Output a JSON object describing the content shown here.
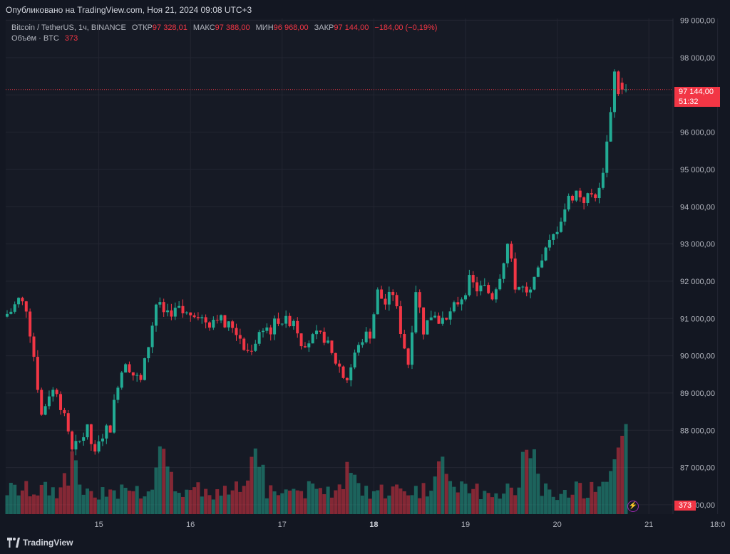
{
  "header": {
    "published": "Опубликовано на TradingView.com, Ноя 21, 2024 09:08 UTC+3"
  },
  "legend": {
    "symbol": "Bitcoin / TetherUS, 1ч, BINANCE",
    "open_label": "ОТКР",
    "open_value": "97 328,01",
    "high_label": "МАКС",
    "high_value": "97 388,00",
    "low_label": "МИН",
    "low_value": "96 968,00",
    "close_label": "ЗАКР",
    "close_value": "97 144,00",
    "change": "−184,00 (−0,19%)",
    "volume_label": "Объём · BTC",
    "volume_value": "373"
  },
  "price_tag": {
    "price": "97 144,00",
    "countdown": "51:32"
  },
  "volume_tag": "373",
  "footer": {
    "brand": "TradingView"
  },
  "colors": {
    "up": "#22ab94",
    "down": "#f23645",
    "bg": "#161a25",
    "grid": "#232632",
    "text": "#b2b5be"
  },
  "icons": {
    "flash": "lightning-icon"
  },
  "chart_data": {
    "type": "candlestick",
    "y_axis": {
      "min": 85750,
      "max": 99050,
      "ticks": [
        86000,
        87000,
        88000,
        89000,
        90000,
        91000,
        92000,
        93000,
        94000,
        95000,
        96000,
        97000,
        98000,
        99000
      ],
      "tick_labels": [
        "86 000,00",
        "87 000,00",
        "88 000,00",
        "89 000,00",
        "90 000,00",
        "91 000,00",
        "92 000,00",
        "93 000,00",
        "94 000,00",
        "95 000,00",
        "96 000,00",
        "97 000,00",
        "98 000,00",
        "99 000,00"
      ]
    },
    "x_axis": {
      "labels": [
        "15",
        "16",
        "17",
        "18",
        "19",
        "20",
        "21",
        "18:0"
      ],
      "label_hours": [
        24,
        48,
        72,
        96,
        120,
        144,
        168,
        186
      ],
      "bold": [
        "18"
      ]
    },
    "last_price": 97144,
    "series_ohlc_points": [
      [
        0,
        91050
      ],
      [
        2,
        91200
      ],
      [
        4,
        91500
      ],
      [
        6,
        91300
      ],
      [
        8,
        90000
      ],
      [
        10,
        88400
      ],
      [
        12,
        89000
      ],
      [
        14,
        89100
      ],
      [
        16,
        88300
      ],
      [
        18,
        87400
      ],
      [
        20,
        87700
      ],
      [
        22,
        88000
      ],
      [
        24,
        87300
      ],
      [
        26,
        87900
      ],
      [
        28,
        88100
      ],
      [
        30,
        89300
      ],
      [
        32,
        89900
      ],
      [
        34,
        89500
      ],
      [
        36,
        89300
      ],
      [
        38,
        90300
      ],
      [
        40,
        91400
      ],
      [
        42,
        91200
      ],
      [
        44,
        91200
      ],
      [
        46,
        91200
      ],
      [
        48,
        91100
      ],
      [
        50,
        91200
      ],
      [
        52,
        91000
      ],
      [
        54,
        90900
      ],
      [
        56,
        91100
      ],
      [
        58,
        90800
      ],
      [
        60,
        90800
      ],
      [
        62,
        90500
      ],
      [
        64,
        90100
      ],
      [
        66,
        90400
      ],
      [
        68,
        90800
      ],
      [
        70,
        90700
      ],
      [
        72,
        91000
      ],
      [
        74,
        90900
      ],
      [
        76,
        91000
      ],
      [
        78,
        90400
      ],
      [
        80,
        90400
      ],
      [
        82,
        90500
      ],
      [
        84,
        90500
      ],
      [
        86,
        90000
      ],
      [
        88,
        89700
      ],
      [
        90,
        89400
      ],
      [
        92,
        90000
      ],
      [
        94,
        90500
      ],
      [
        96,
        90600
      ],
      [
        98,
        91700
      ],
      [
        100,
        91400
      ],
      [
        102,
        91700
      ],
      [
        104,
        90700
      ],
      [
        106,
        89800
      ],
      [
        108,
        91800
      ],
      [
        110,
        90700
      ],
      [
        112,
        91100
      ],
      [
        114,
        91000
      ],
      [
        116,
        90900
      ],
      [
        118,
        91300
      ],
      [
        120,
        91600
      ],
      [
        122,
        92000
      ],
      [
        124,
        91800
      ],
      [
        126,
        91800
      ],
      [
        128,
        91600
      ],
      [
        130,
        92200
      ],
      [
        132,
        93000
      ],
      [
        134,
        91900
      ],
      [
        136,
        91800
      ],
      [
        138,
        91700
      ],
      [
        140,
        92200
      ],
      [
        142,
        92800
      ],
      [
        144,
        93200
      ],
      [
        146,
        93700
      ],
      [
        148,
        94200
      ],
      [
        150,
        94400
      ],
      [
        152,
        94200
      ],
      [
        154,
        94300
      ],
      [
        156,
        94400
      ],
      [
        158,
        95700
      ],
      [
        160,
        97600
      ],
      [
        161,
        97144
      ]
    ],
    "volume_ticks_note": "volume bars shown at bottom"
  }
}
